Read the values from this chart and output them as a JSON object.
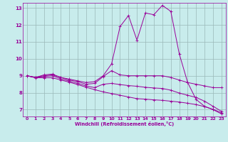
{
  "xlabel": "Windchill (Refroidissement éolien,°C)",
  "background_color": "#c8ecec",
  "line_color": "#990099",
  "grid_color": "#9ab8b8",
  "xlim": [
    -0.5,
    23.5
  ],
  "ylim": [
    6.6,
    13.3
  ],
  "xticks": [
    0,
    1,
    2,
    3,
    4,
    5,
    6,
    7,
    8,
    9,
    10,
    11,
    12,
    13,
    14,
    15,
    16,
    17,
    18,
    19,
    20,
    21,
    22,
    23
  ],
  "yticks": [
    7,
    8,
    9,
    10,
    11,
    12,
    13
  ],
  "series": [
    {
      "x": [
        0,
        1,
        2,
        3,
        4,
        5,
        6,
        7,
        8,
        9,
        10,
        11,
        12,
        13,
        14,
        15,
        16,
        17,
        18,
        19,
        20,
        21,
        22,
        23
      ],
      "y": [
        9.0,
        8.9,
        9.05,
        9.1,
        8.9,
        8.8,
        8.7,
        8.6,
        8.65,
        9.0,
        9.7,
        11.9,
        12.55,
        11.1,
        12.7,
        12.6,
        13.15,
        12.8,
        10.3,
        8.6,
        7.6,
        7.2,
        7.0,
        6.75
      ]
    },
    {
      "x": [
        0,
        1,
        2,
        3,
        4,
        5,
        6,
        7,
        8,
        9,
        10,
        11,
        12,
        13,
        14,
        15,
        16,
        17,
        18,
        19,
        20,
        21,
        22,
        23
      ],
      "y": [
        9.0,
        8.9,
        9.0,
        9.05,
        8.9,
        8.75,
        8.65,
        8.5,
        8.55,
        8.95,
        9.3,
        9.05,
        9.0,
        9.0,
        9.0,
        9.0,
        9.0,
        8.9,
        8.75,
        8.6,
        8.5,
        8.4,
        8.3,
        8.3
      ]
    },
    {
      "x": [
        0,
        1,
        2,
        3,
        4,
        5,
        6,
        7,
        8,
        9,
        10,
        11,
        12,
        13,
        14,
        15,
        16,
        17,
        18,
        19,
        20,
        21,
        22,
        23
      ],
      "y": [
        9.0,
        8.9,
        8.95,
        9.0,
        8.82,
        8.68,
        8.55,
        8.4,
        8.3,
        8.5,
        8.55,
        8.48,
        8.42,
        8.38,
        8.32,
        8.28,
        8.25,
        8.15,
        7.98,
        7.85,
        7.72,
        7.5,
        7.2,
        6.9
      ]
    },
    {
      "x": [
        0,
        1,
        2,
        3,
        4,
        5,
        6,
        7,
        8,
        9,
        10,
        11,
        12,
        13,
        14,
        15,
        16,
        17,
        18,
        19,
        20,
        21,
        22,
        23
      ],
      "y": [
        9.0,
        8.88,
        8.88,
        8.88,
        8.75,
        8.62,
        8.48,
        8.32,
        8.18,
        8.05,
        7.95,
        7.85,
        7.75,
        7.65,
        7.62,
        7.58,
        7.55,
        7.5,
        7.45,
        7.38,
        7.3,
        7.18,
        7.02,
        6.82
      ]
    }
  ]
}
